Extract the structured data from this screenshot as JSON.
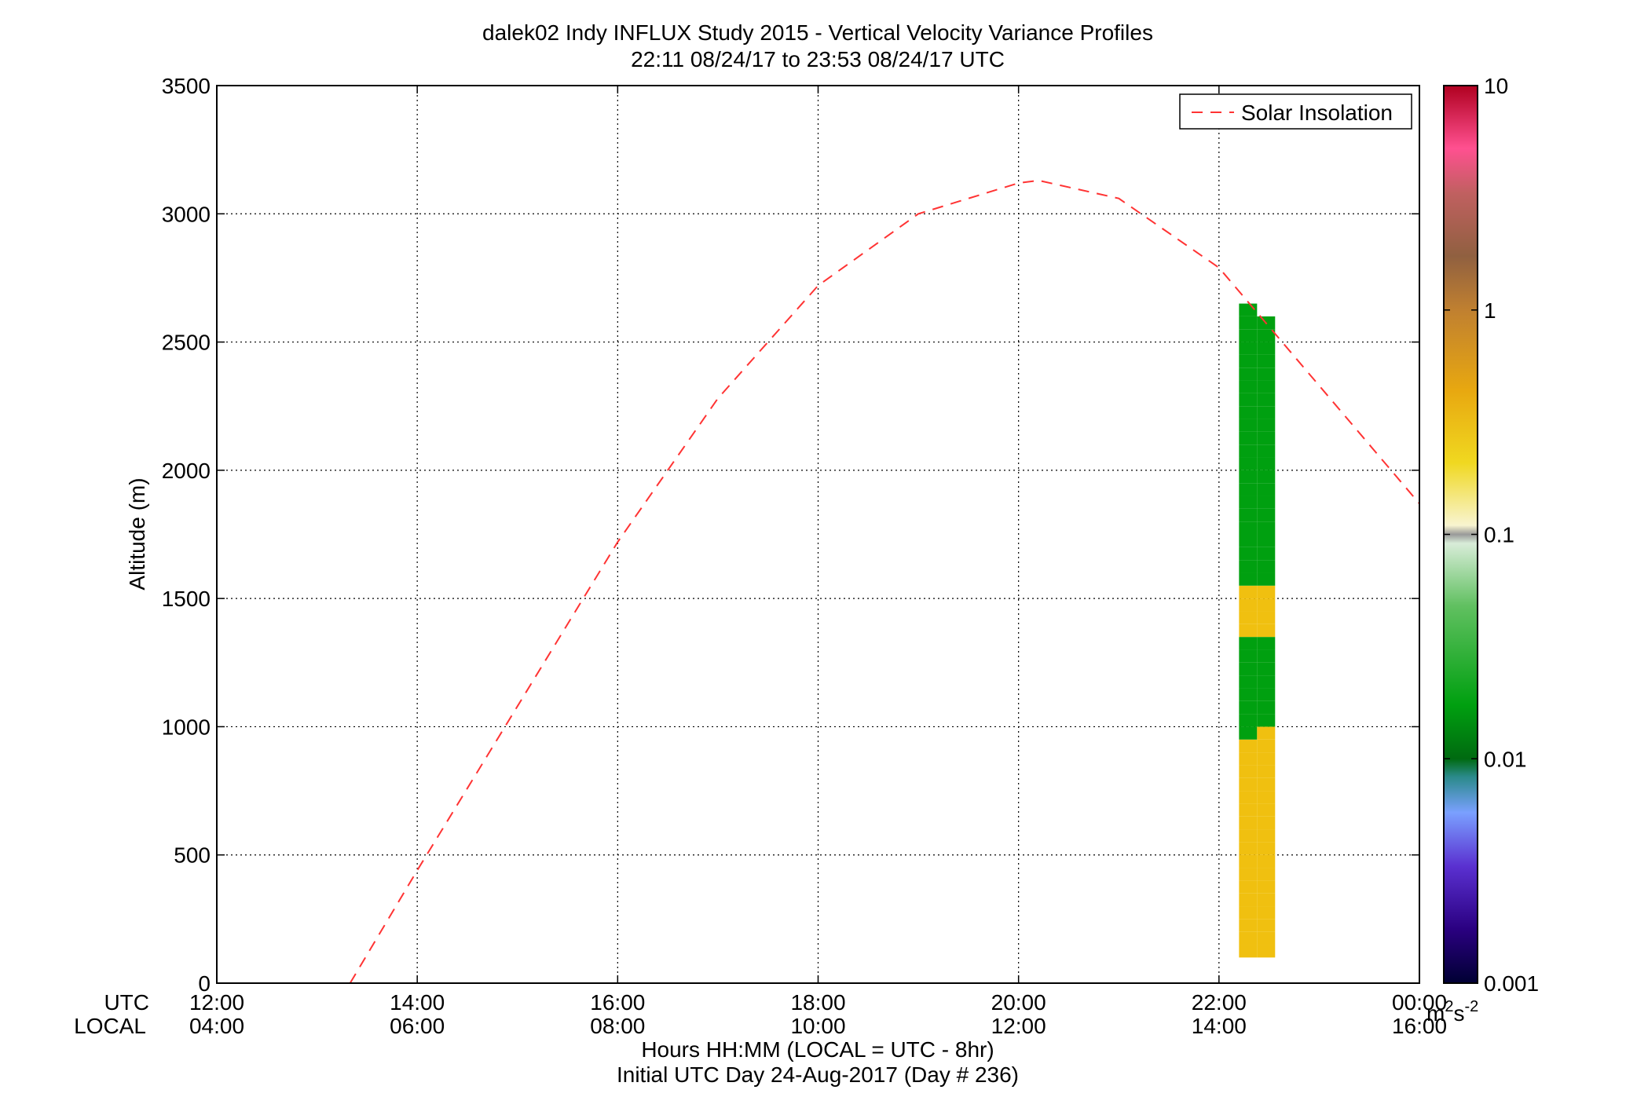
{
  "chart_data": {
    "type": "heatmap",
    "title": "dalek02 Indy INFLUX Study 2015 - Vertical Velocity Variance Profiles",
    "subtitle": "22:11 08/24/17 to 23:53 08/24/17  UTC",
    "ylabel": "Altitude (m)",
    "xlabel": "Hours HH:MM  (LOCAL = UTC - 8hr)",
    "xlabel2": "Initial UTC Day 24-Aug-2017 (Day # 236)",
    "xrow_labels": [
      "UTC",
      "LOCAL"
    ],
    "ylim": [
      0,
      3500
    ],
    "yticks": [
      "0",
      "500",
      "1000",
      "1500",
      "2000",
      "2500",
      "3000",
      "3500"
    ],
    "xlim_hours_utc": [
      12,
      24
    ],
    "xticks_utc": [
      "12:00",
      "14:00",
      "16:00",
      "18:00",
      "20:00",
      "22:00",
      "00:00"
    ],
    "xticks_local": [
      "04:00",
      "06:00",
      "08:00",
      "10:00",
      "12:00",
      "14:00",
      "16:00"
    ],
    "grid": true,
    "legend": {
      "placement": "top-right",
      "entries": [
        "Solar Insolation"
      ]
    },
    "colorbar": {
      "scale": "log",
      "range": [
        0.001,
        10
      ],
      "ticks": [
        "0.001",
        "0.01",
        "0.1",
        "1",
        "10"
      ],
      "unit_base": "m",
      "unit_exp1": "2",
      "unit_mid": "s",
      "unit_exp2": "-2"
    },
    "solar_insolation": {
      "color": "#ff3333",
      "x_hours_utc": [
        13.33,
        14.0,
        15.0,
        16.0,
        17.0,
        18.0,
        19.0,
        20.0,
        20.2,
        21.0,
        22.0,
        23.0,
        24.0
      ],
      "y_altitude": [
        0,
        440,
        1080,
        1720,
        2280,
        2720,
        3000,
        3120,
        3130,
        3060,
        2790,
        2330,
        1870
      ]
    },
    "heatmap": {
      "time_start_utc": 22.2,
      "time_step_hours": 0.18,
      "alt_start_m": 100,
      "alt_step_m": 50,
      "columns": [
        {
          "t": 22.2,
          "v": "YYYYYYYYYYYYYYYYYGGGGGGGGYYYYGGGGGGGGGGGGGGGGGGGGGG"
        },
        {
          "t": 22.38,
          "v": "YYYYYYYYYYYYYYYYYYGGGGGGGYYYYGGGGGGGGGGGGGGGGGGGGG"
        }
      ]
    }
  }
}
